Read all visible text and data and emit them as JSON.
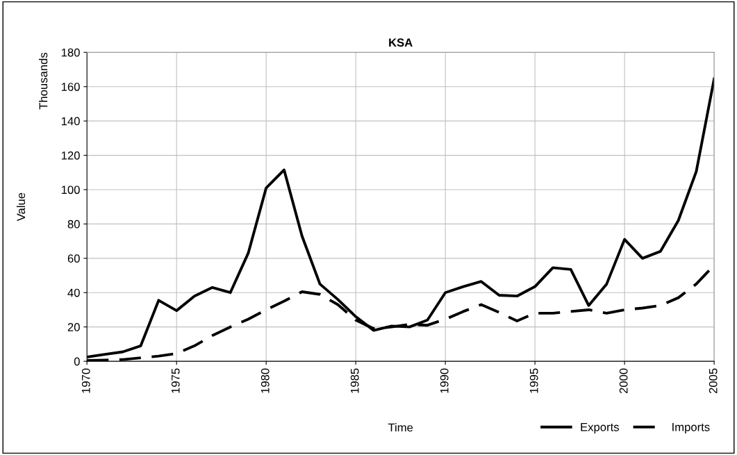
{
  "chart_data": {
    "type": "line",
    "title": "KSA",
    "xlabel": "Time",
    "ylabel": "Value",
    "annotations": [
      "Thousands"
    ],
    "x": [
      1970,
      1971,
      1972,
      1973,
      1974,
      1975,
      1976,
      1977,
      1978,
      1979,
      1980,
      1981,
      1982,
      1983,
      1984,
      1985,
      1986,
      1987,
      1988,
      1989,
      1990,
      1991,
      1992,
      1993,
      1994,
      1995,
      1996,
      1997,
      1998,
      1999,
      2000,
      2001,
      2002,
      2003,
      2004,
      2005
    ],
    "series": [
      {
        "name": "Exports",
        "color": "#000000",
        "line_style": "solid",
        "values": [
          2.5,
          4,
          5.5,
          9,
          35.5,
          29.5,
          38,
          43,
          40,
          63,
          101,
          111.5,
          73,
          45,
          36,
          26,
          18,
          20.5,
          20,
          24,
          40,
          43.5,
          46.5,
          38.5,
          38,
          43.5,
          54.5,
          53.5,
          32.5,
          45,
          71,
          60,
          64,
          82,
          110.5,
          164.5
        ]
      },
      {
        "name": "Imports",
        "color": "#000000",
        "line_style": "dashed",
        "values": [
          0.5,
          0.7,
          1,
          2,
          3,
          4.5,
          9,
          15,
          20,
          24.5,
          30,
          35,
          40.5,
          39,
          33,
          24,
          19,
          20,
          21.5,
          21,
          24.5,
          29,
          33,
          28.5,
          23.5,
          28,
          28,
          29,
          30,
          28,
          30,
          31,
          32.5,
          37,
          45,
          56
        ]
      }
    ],
    "xlim": [
      1970,
      2005
    ],
    "xticks": [
      1970,
      1975,
      1980,
      1985,
      1990,
      1995,
      2000,
      2005
    ],
    "ylim": [
      0,
      180
    ],
    "yticks": [
      0,
      20,
      40,
      60,
      80,
      100,
      120,
      140,
      160,
      180
    ],
    "grid": true,
    "legend": "bottom right",
    "marker": "none"
  }
}
